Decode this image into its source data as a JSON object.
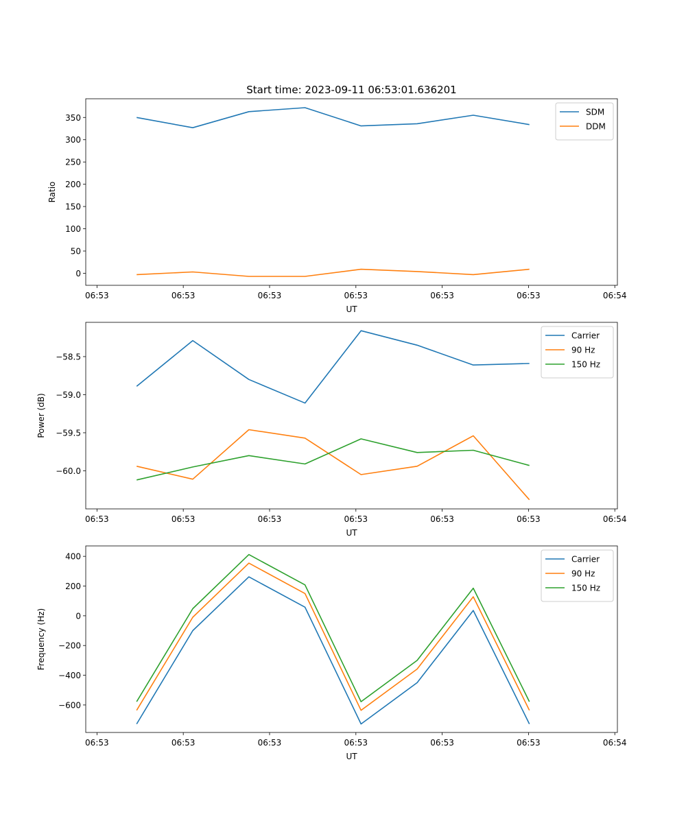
{
  "figure": {
    "title": "Start time: 2023-09-11 06:53:01.636201"
  },
  "colors": {
    "blue": "#1f77b4",
    "orange": "#ff7f0e",
    "green": "#2ca02c",
    "axis": "#000000",
    "legend_border": "#cccccc"
  },
  "chart_data": [
    {
      "type": "line",
      "id": "ratio",
      "title": "Start time: 2023-09-11 06:53:01.636201",
      "xlabel": "UT",
      "ylabel": "Ratio",
      "x_tick_labels": [
        "06:53",
        "06:53",
        "06:53",
        "06:53",
        "06:53",
        "06:53",
        "06:54"
      ],
      "x_tick_values": [
        0,
        10,
        20,
        30,
        40,
        50,
        60
      ],
      "xlim": [
        -1.3,
        60.3
      ],
      "x": [
        4.6,
        11.1,
        17.6,
        24.1,
        30.6,
        37.1,
        43.6,
        50.1
      ],
      "yticks": [
        0,
        50,
        100,
        150,
        200,
        250,
        300,
        350
      ],
      "ylim": [
        -27,
        392
      ],
      "legend_location": "upper right",
      "series": [
        {
          "name": "SDM",
          "color": "#1f77b4",
          "values": [
            350,
            327,
            363,
            372,
            331,
            336,
            355,
            334
          ]
        },
        {
          "name": "DDM",
          "color": "#ff7f0e",
          "values": [
            -3,
            3,
            -7,
            -7,
            9,
            4,
            -3,
            9
          ]
        }
      ]
    },
    {
      "type": "line",
      "id": "power",
      "title": "",
      "xlabel": "UT",
      "ylabel": "Power (dB)",
      "x_tick_labels": [
        "06:53",
        "06:53",
        "06:53",
        "06:53",
        "06:53",
        "06:53",
        "06:54"
      ],
      "x_tick_values": [
        0,
        10,
        20,
        30,
        40,
        50,
        60
      ],
      "xlim": [
        -1.3,
        60.3
      ],
      "x": [
        4.6,
        11.1,
        17.6,
        24.1,
        30.6,
        37.1,
        43.6,
        50.1
      ],
      "yticks": [
        -60.0,
        -59.5,
        -59.0,
        -58.5
      ],
      "ytick_labels": [
        "−60.0",
        "−59.5",
        "−59.0",
        "−58.5"
      ],
      "ylim": [
        -60.5,
        -58.05
      ],
      "legend_location": "upper right",
      "series": [
        {
          "name": "Carrier",
          "color": "#1f77b4",
          "values": [
            -58.89,
            -58.29,
            -58.8,
            -59.11,
            -58.16,
            -58.35,
            -58.61,
            -58.59
          ]
        },
        {
          "name": "90 Hz",
          "color": "#ff7f0e",
          "values": [
            -59.94,
            -60.11,
            -59.46,
            -59.57,
            -60.05,
            -59.94,
            -59.54,
            -60.38
          ]
        },
        {
          "name": "150 Hz",
          "color": "#2ca02c",
          "values": [
            -60.12,
            -59.95,
            -59.8,
            -59.91,
            -59.58,
            -59.76,
            -59.73,
            -59.93
          ]
        }
      ]
    },
    {
      "type": "line",
      "id": "frequency",
      "title": "",
      "xlabel": "UT",
      "ylabel": "Frequency (Hz)",
      "x_tick_labels": [
        "06:53",
        "06:53",
        "06:53",
        "06:53",
        "06:53",
        "06:53",
        "06:54"
      ],
      "x_tick_values": [
        0,
        10,
        20,
        30,
        40,
        50,
        60
      ],
      "xlim": [
        -1.3,
        60.3
      ],
      "x": [
        4.6,
        11.1,
        17.6,
        24.1,
        30.6,
        37.1,
        43.6,
        50.1
      ],
      "yticks": [
        -600,
        -400,
        -200,
        0,
        200,
        400
      ],
      "ytick_labels": [
        "−600",
        "−400",
        "−200",
        "0",
        "200",
        "400"
      ],
      "ylim": [
        -785,
        470
      ],
      "legend_location": "upper right",
      "series": [
        {
          "name": "Carrier",
          "color": "#1f77b4",
          "values": [
            -728,
            -100,
            262,
            58,
            -728,
            -450,
            36,
            -728
          ]
        },
        {
          "name": "90 Hz",
          "color": "#ff7f0e",
          "values": [
            -636,
            -10,
            354,
            150,
            -636,
            -358,
            128,
            -636
          ]
        },
        {
          "name": "150 Hz",
          "color": "#2ca02c",
          "values": [
            -578,
            48,
            412,
            208,
            -578,
            -300,
            186,
            -578
          ]
        }
      ]
    }
  ]
}
